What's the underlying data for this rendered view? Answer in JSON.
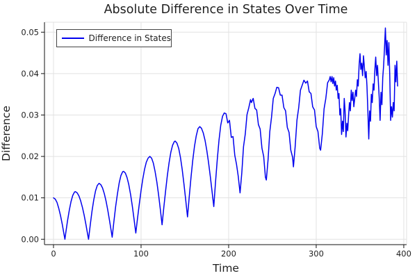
{
  "figure": {
    "background": "#ffffff"
  },
  "colors": {
    "line": "#0000ee",
    "grid": "#e2e2e2",
    "spine": "#111111",
    "text": "#1f1f1f",
    "legend_border": "#444444"
  },
  "chart_data": {
    "type": "line",
    "title": "Absolute Difference in States Over Time",
    "xlabel": "Time",
    "ylabel": "Difference",
    "xlim": [
      -10.3,
      403.2
    ],
    "ylim": [
      -0.0013,
      0.0524
    ],
    "grid": true,
    "x_ticks": {
      "values": [
        0,
        100,
        200,
        300,
        400
      ],
      "labels": [
        "0",
        "100",
        "200",
        "300",
        "400"
      ]
    },
    "y_ticks": {
      "values": [
        0,
        0.01,
        0.02,
        0.03,
        0.04,
        0.05
      ],
      "labels": [
        "0.00",
        "0.01",
        "0.02",
        "0.03",
        "0.04",
        "0.05"
      ]
    },
    "legend": {
      "position": "top-left",
      "entries": [
        {
          "label": "Difference in States",
          "color": "#0000ee"
        }
      ]
    },
    "series": [
      {
        "name": "Difference in States",
        "color": "#0000ee",
        "line_width": 1.5,
        "points": [
          [
            0,
            0.01
          ],
          [
            2,
            0.0097
          ],
          [
            4,
            0.0089
          ],
          [
            6,
            0.0075
          ],
          [
            8,
            0.0057
          ],
          [
            10,
            0.0036
          ],
          [
            12,
            0.0012
          ],
          [
            13,
            0
          ],
          [
            14,
            0.0015
          ],
          [
            16,
            0.0044
          ],
          [
            18,
            0.007
          ],
          [
            20,
            0.0091
          ],
          [
            22,
            0.0106
          ],
          [
            24,
            0.0114
          ],
          [
            25,
            0.0115
          ],
          [
            27,
            0.0112
          ],
          [
            29,
            0.0105
          ],
          [
            31,
            0.0093
          ],
          [
            33,
            0.0077
          ],
          [
            35,
            0.0058
          ],
          [
            37,
            0.0036
          ],
          [
            39,
            0.0012
          ],
          [
            40,
            0
          ],
          [
            42,
            0.0035
          ],
          [
            44,
            0.0068
          ],
          [
            46,
            0.0095
          ],
          [
            48,
            0.0117
          ],
          [
            50,
            0.013
          ],
          [
            52,
            0.0135
          ],
          [
            54,
            0.0132
          ],
          [
            56,
            0.0124
          ],
          [
            58,
            0.011
          ],
          [
            60,
            0.0092
          ],
          [
            62,
            0.007
          ],
          [
            64,
            0.0045
          ],
          [
            66,
            0.0019
          ],
          [
            67,
            0.0005
          ],
          [
            69,
            0.0043
          ],
          [
            71,
            0.0079
          ],
          [
            73,
            0.011
          ],
          [
            75,
            0.0136
          ],
          [
            77,
            0.0154
          ],
          [
            79,
            0.0163
          ],
          [
            80,
            0.0164
          ],
          [
            82,
            0.016
          ],
          [
            84,
            0.0149
          ],
          [
            86,
            0.0132
          ],
          [
            88,
            0.0108
          ],
          [
            90,
            0.008
          ],
          [
            92,
            0.0048
          ],
          [
            94,
            0.0015
          ],
          [
            96,
            0.0051
          ],
          [
            98,
            0.0086
          ],
          [
            100,
            0.0118
          ],
          [
            102,
            0.0146
          ],
          [
            104,
            0.0169
          ],
          [
            106,
            0.0186
          ],
          [
            108,
            0.0196
          ],
          [
            110,
            0.02
          ],
          [
            112,
            0.0196
          ],
          [
            114,
            0.0184
          ],
          [
            116,
            0.0164
          ],
          [
            118,
            0.0138
          ],
          [
            120,
            0.0107
          ],
          [
            122,
            0.0072
          ],
          [
            124,
            0.0035
          ],
          [
            126,
            0.0077
          ],
          [
            128,
            0.0117
          ],
          [
            130,
            0.0154
          ],
          [
            132,
            0.0185
          ],
          [
            134,
            0.021
          ],
          [
            136,
            0.0227
          ],
          [
            138,
            0.0236
          ],
          [
            139,
            0.0237
          ],
          [
            141,
            0.0232
          ],
          [
            143,
            0.0219
          ],
          [
            145,
            0.0197
          ],
          [
            147,
            0.0168
          ],
          [
            149,
            0.0133
          ],
          [
            151,
            0.0095
          ],
          [
            153,
            0.0054
          ],
          [
            155,
            0.0103
          ],
          [
            157,
            0.0149
          ],
          [
            159,
            0.019
          ],
          [
            161,
            0.0224
          ],
          [
            163,
            0.025
          ],
          [
            165,
            0.0267
          ],
          [
            167,
            0.0272
          ],
          [
            169,
            0.0268
          ],
          [
            171,
            0.0257
          ],
          [
            173,
            0.0239
          ],
          [
            175,
            0.0215
          ],
          [
            177,
            0.0186
          ],
          [
            179,
            0.0153
          ],
          [
            181,
            0.0117
          ],
          [
            183,
            0.0079
          ],
          [
            185,
            0.0138
          ],
          [
            187,
            0.0192
          ],
          [
            189,
            0.0239
          ],
          [
            191,
            0.0275
          ],
          [
            193,
            0.0297
          ],
          [
            195,
            0.0305
          ],
          [
            197,
            0.0303
          ],
          [
            199,
            0.0281
          ],
          [
            201,
            0.0287
          ],
          [
            203,
            0.0246
          ],
          [
            205,
            0.0248
          ],
          [
            207,
            0.0203
          ],
          [
            209,
            0.0181
          ],
          [
            211,
            0.0152
          ],
          [
            213,
            0.0112
          ],
          [
            215,
            0.016
          ],
          [
            217,
            0.0224
          ],
          [
            219,
            0.0254
          ],
          [
            221,
            0.0301
          ],
          [
            223,
            0.0318
          ],
          [
            225,
            0.0337
          ],
          [
            226,
            0.033
          ],
          [
            228,
            0.034
          ],
          [
            230,
            0.0316
          ],
          [
            232,
            0.0312
          ],
          [
            234,
            0.0277
          ],
          [
            236,
            0.0266
          ],
          [
            238,
            0.022
          ],
          [
            240,
            0.02
          ],
          [
            242,
            0.015
          ],
          [
            243,
            0.0143
          ],
          [
            245,
            0.0192
          ],
          [
            247,
            0.026
          ],
          [
            249,
            0.0295
          ],
          [
            251,
            0.034
          ],
          [
            253,
            0.0352
          ],
          [
            255,
            0.0367
          ],
          [
            257,
            0.0366
          ],
          [
            259,
            0.0348
          ],
          [
            261,
            0.0348
          ],
          [
            263,
            0.0318
          ],
          [
            265,
            0.031
          ],
          [
            267,
            0.027
          ],
          [
            269,
            0.0258
          ],
          [
            271,
            0.0215
          ],
          [
            273,
            0.0198
          ],
          [
            274,
            0.0175
          ],
          [
            276,
            0.0224
          ],
          [
            278,
            0.0288
          ],
          [
            280,
            0.0318
          ],
          [
            282,
            0.036
          ],
          [
            284,
            0.0372
          ],
          [
            286,
            0.0384
          ],
          [
            288,
            0.0377
          ],
          [
            290,
            0.0382
          ],
          [
            292,
            0.0356
          ],
          [
            294,
            0.0352
          ],
          [
            296,
            0.032
          ],
          [
            298,
            0.0312
          ],
          [
            300,
            0.0272
          ],
          [
            302,
            0.026
          ],
          [
            304,
            0.022
          ],
          [
            305,
            0.0215
          ],
          [
            307,
            0.0255
          ],
          [
            309,
            0.0315
          ],
          [
            311,
            0.034
          ],
          [
            313,
            0.0378
          ],
          [
            315,
            0.0385
          ],
          [
            316,
            0.0393
          ],
          [
            317,
            0.038
          ],
          [
            318,
            0.0393
          ],
          [
            319,
            0.0376
          ],
          [
            320,
            0.039
          ],
          [
            321,
            0.037
          ],
          [
            322,
            0.0382
          ],
          [
            323,
            0.036
          ],
          [
            324,
            0.0372
          ],
          [
            325,
            0.034
          ],
          [
            326,
            0.0352
          ],
          [
            327,
            0.03
          ],
          [
            328,
            0.0315
          ],
          [
            329,
            0.0253
          ],
          [
            330,
            0.0285
          ],
          [
            331,
            0.026
          ],
          [
            332,
            0.034
          ],
          [
            333,
            0.031
          ],
          [
            334,
            0.0247
          ],
          [
            335,
            0.028
          ],
          [
            336,
            0.0262
          ],
          [
            337,
            0.03
          ],
          [
            338,
            0.033
          ],
          [
            339,
            0.031
          ],
          [
            340,
            0.036
          ],
          [
            341,
            0.0335
          ],
          [
            342,
            0.0355
          ],
          [
            343,
            0.032
          ],
          [
            344,
            0.034
          ],
          [
            345,
            0.036
          ],
          [
            346,
            0.0345
          ],
          [
            347,
            0.0385
          ],
          [
            348,
            0.037
          ],
          [
            349,
            0.042
          ],
          [
            350,
            0.0448
          ],
          [
            351,
            0.041
          ],
          [
            352,
            0.0425
          ],
          [
            353,
            0.0395
          ],
          [
            354,
            0.0443
          ],
          [
            355,
            0.0415
          ],
          [
            356,
            0.039
          ],
          [
            357,
            0.0405
          ],
          [
            358,
            0.037
          ],
          [
            359,
            0.031
          ],
          [
            360,
            0.0242
          ],
          [
            361,
            0.031
          ],
          [
            362,
            0.0285
          ],
          [
            363,
            0.035
          ],
          [
            364,
            0.033
          ],
          [
            365,
            0.0375
          ],
          [
            366,
            0.036
          ],
          [
            367,
            0.041
          ],
          [
            368,
            0.044
          ],
          [
            369,
            0.0395
          ],
          [
            370,
            0.042
          ],
          [
            371,
            0.038
          ],
          [
            372,
            0.034
          ],
          [
            373,
            0.0287
          ],
          [
            374,
            0.0355
          ],
          [
            375,
            0.0325
          ],
          [
            376,
            0.039
          ],
          [
            377,
            0.042
          ],
          [
            378,
            0.046
          ],
          [
            379,
            0.051
          ],
          [
            380,
            0.0445
          ],
          [
            381,
            0.048
          ],
          [
            382,
            0.042
          ],
          [
            383,
            0.0475
          ],
          [
            384,
            0.0395
          ],
          [
            385,
            0.0287
          ],
          [
            386,
            0.032
          ],
          [
            387,
            0.0295
          ],
          [
            388,
            0.033
          ],
          [
            389,
            0.031
          ],
          [
            390,
            0.042
          ],
          [
            391,
            0.038
          ],
          [
            392,
            0.043
          ],
          [
            393,
            0.037
          ]
        ]
      }
    ]
  }
}
